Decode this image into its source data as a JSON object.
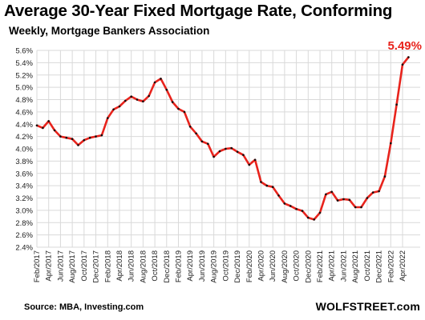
{
  "title": "Average 30-Year Fixed Mortgage Rate, Conforming",
  "subtitle": "Weekly, Mortgage Bankers Association",
  "source": "Source: MBA,  Investing.com",
  "brand": "WOLFSTREET.com",
  "colors": {
    "line": "#e8231c",
    "markers": "#111111",
    "callout": "#e8231c",
    "grid": "#d9d9d9"
  },
  "chart_data": {
    "type": "line",
    "title": "Average 30-Year Fixed Mortgage Rate, Conforming",
    "subtitle": "Weekly, Mortgage Bankers Association",
    "xlabel": "",
    "ylabel": "",
    "ylim": [
      2.4,
      5.6
    ],
    "yticks": [
      "5.6%",
      "5.4%",
      "5.2%",
      "5.0%",
      "4.8%",
      "4.6%",
      "4.4%",
      "4.2%",
      "4.0%",
      "3.8%",
      "3.6%",
      "3.4%",
      "3.2%",
      "3.0%",
      "2.8%",
      "2.6%",
      "2.4%"
    ],
    "xticks": [
      "Feb/2017",
      "Apr/2017",
      "Jun/2017",
      "Aug/2017",
      "Oct/2017",
      "Dec/2017",
      "Feb/2018",
      "Apr/2018",
      "Jun/2018",
      "Aug/2018",
      "Oct/2018",
      "Dec/2018",
      "Feb/2019",
      "Apr/2019",
      "Jun/2019",
      "Aug/2019",
      "Oct/2019",
      "Dec/2019",
      "Feb/2020",
      "Apr/2020",
      "Jun/2020",
      "Aug/2020",
      "Oct/2020",
      "Dec/2020",
      "Feb/2021",
      "Apr/2021",
      "Jun/2021",
      "Aug/2021",
      "Oct/2021",
      "Dec/2021",
      "Feb/2022",
      "Apr/2022"
    ],
    "grid": true,
    "legend": "none",
    "annotation": "5.49%",
    "series": [
      {
        "x": [
          "2017-02",
          "2017-03",
          "2017-04",
          "2017-05",
          "2017-06",
          "2017-07",
          "2017-08",
          "2017-09",
          "2017-10",
          "2017-11",
          "2017-12",
          "2018-01",
          "2018-02",
          "2018-03",
          "2018-04",
          "2018-05",
          "2018-06",
          "2018-07",
          "2018-08",
          "2018-09",
          "2018-10",
          "2018-11",
          "2018-12",
          "2019-01",
          "2019-02",
          "2019-03",
          "2019-04",
          "2019-05",
          "2019-06",
          "2019-07",
          "2019-08",
          "2019-09",
          "2019-10",
          "2019-11",
          "2019-12",
          "2020-01",
          "2020-02",
          "2020-03",
          "2020-04",
          "2020-05",
          "2020-06",
          "2020-07",
          "2020-08",
          "2020-09",
          "2020-10",
          "2020-11",
          "2020-12",
          "2021-01",
          "2021-02",
          "2021-03",
          "2021-04",
          "2021-05",
          "2021-06",
          "2021-07",
          "2021-08",
          "2021-09",
          "2021-10",
          "2021-11",
          "2021-12",
          "2022-01",
          "2022-02",
          "2022-03",
          "2022-04",
          "2022-05"
        ],
        "values": [
          4.38,
          4.34,
          4.45,
          4.3,
          4.2,
          4.18,
          4.16,
          4.06,
          4.14,
          4.18,
          4.2,
          4.22,
          4.5,
          4.64,
          4.69,
          4.78,
          4.85,
          4.8,
          4.77,
          4.86,
          5.08,
          5.14,
          4.96,
          4.76,
          4.65,
          4.6,
          4.36,
          4.25,
          4.12,
          4.08,
          3.87,
          3.96,
          4.0,
          4.01,
          3.95,
          3.9,
          3.74,
          3.82,
          3.46,
          3.4,
          3.38,
          3.24,
          3.11,
          3.07,
          3.02,
          2.99,
          2.88,
          2.85,
          2.96,
          3.26,
          3.3,
          3.16,
          3.18,
          3.17,
          3.05,
          3.05,
          3.2,
          3.29,
          3.31,
          3.55,
          4.09,
          4.72,
          5.37,
          5.49
        ]
      }
    ]
  }
}
